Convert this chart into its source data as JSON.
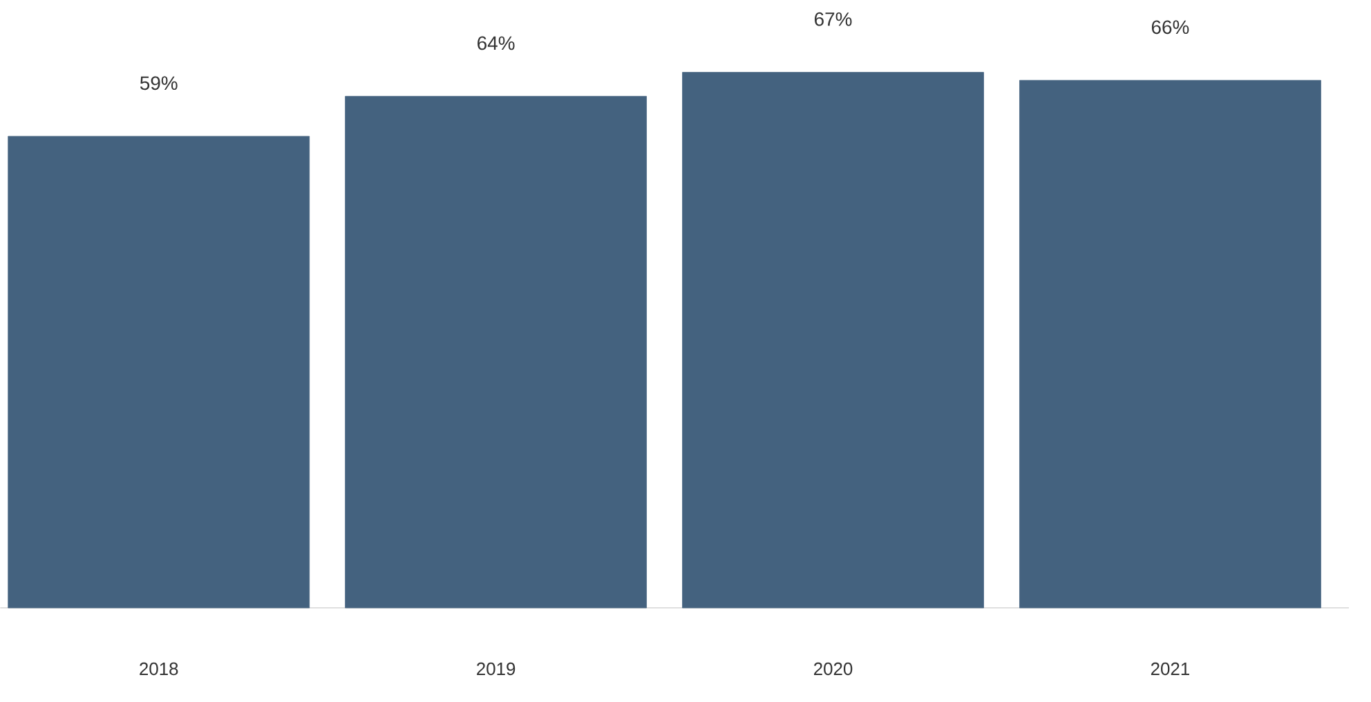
{
  "chart_data": {
    "type": "bar",
    "categories": [
      "2018",
      "2019",
      "2020",
      "2021"
    ],
    "values": [
      59,
      64,
      67,
      66
    ],
    "value_labels": [
      "59%",
      "64%",
      "67%",
      "66%"
    ],
    "color": "#44627f"
  }
}
